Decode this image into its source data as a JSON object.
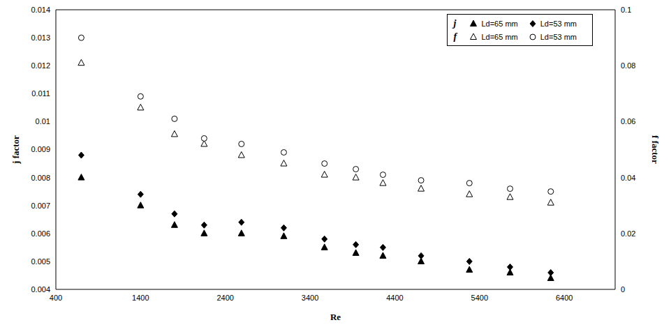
{
  "chart_data": {
    "type": "scatter",
    "x_label": "Re",
    "y_label": "j factor",
    "y2_label": "f factor",
    "x": [
      700,
      1400,
      1800,
      2150,
      2590,
      3090,
      3570,
      3940,
      4260,
      4710,
      5280,
      5760,
      6240
    ],
    "xlim": [
      400,
      7000
    ],
    "xticks": [
      400,
      1400,
      2400,
      3400,
      4400,
      5400,
      6400
    ],
    "ylim": [
      0.004,
      0.014
    ],
    "yticks": [
      0.004,
      0.005,
      0.006,
      0.007,
      0.008,
      0.009,
      0.01,
      0.011,
      0.012,
      0.013,
      0.014
    ],
    "y2lim": [
      0,
      0.1
    ],
    "y2ticks": [
      0,
      0.02,
      0.04,
      0.06,
      0.08,
      0.1
    ],
    "grid": false,
    "legend": "upper right",
    "series": [
      {
        "name": "Ld=65 mm",
        "group": "j",
        "color": "#000000",
        "marker": "filled_triangle",
        "values": [
          0.008,
          0.007,
          0.0063,
          0.006,
          0.006,
          0.0059,
          0.0055,
          0.0053,
          0.0052,
          0.005,
          0.0047,
          0.0046,
          0.0044
        ]
      },
      {
        "name": "Ld=53 mm",
        "group": "j",
        "color": "#000000",
        "marker": "filled_diamond",
        "values": [
          0.0088,
          0.0074,
          0.0067,
          0.0063,
          0.0064,
          0.0062,
          0.0058,
          0.0056,
          0.0055,
          0.0052,
          0.005,
          0.0048,
          0.0046
        ]
      },
      {
        "name": "Ld=65 mm",
        "group": "f",
        "color": "#000000",
        "marker": "open_triangle",
        "axis": "y2",
        "values": [
          0.081,
          0.065,
          0.0555,
          0.052,
          0.048,
          0.045,
          0.041,
          0.04,
          0.038,
          0.036,
          0.034,
          0.033,
          0.031
        ]
      },
      {
        "name": "Ld=53 mm",
        "group": "f",
        "color": "#000000",
        "marker": "open_circle",
        "axis": "y2",
        "values": [
          0.09,
          0.069,
          0.061,
          0.054,
          0.052,
          0.049,
          0.045,
          0.043,
          0.041,
          0.039,
          0.038,
          0.036,
          0.035
        ]
      }
    ]
  }
}
